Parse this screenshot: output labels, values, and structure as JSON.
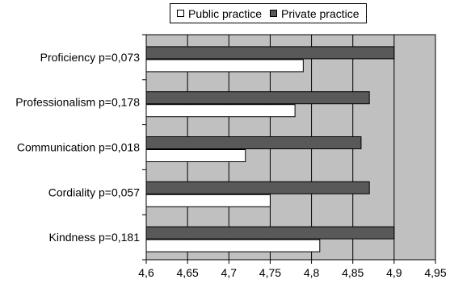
{
  "chart_data": {
    "type": "bar",
    "orientation": "horizontal",
    "categories": [
      "Proficiency p=0,073",
      "Professionalism p=0,178",
      "Communication p=0,018",
      "Cordiality p=0,057",
      "Kindness p=0,181"
    ],
    "series": [
      {
        "name": "Public practice",
        "color": "#ffffff",
        "values": [
          4.79,
          4.78,
          4.72,
          4.75,
          4.81
        ]
      },
      {
        "name": "Private practice",
        "color": "#595959",
        "values": [
          4.9,
          4.87,
          4.86,
          4.87,
          4.9
        ]
      }
    ],
    "xlim": [
      4.6,
      4.95
    ],
    "xticks": [
      "4,6",
      "4,65",
      "4,7",
      "4,75",
      "4,8",
      "4,85",
      "4,9",
      "4,95"
    ],
    "xtick_values": [
      4.6,
      4.65,
      4.7,
      4.75,
      4.8,
      4.85,
      4.9,
      4.95
    ],
    "title": "",
    "xlabel": "",
    "ylabel": "",
    "grid": "vertical",
    "legend_position": "top",
    "plot_background": "#c0c0c0"
  }
}
